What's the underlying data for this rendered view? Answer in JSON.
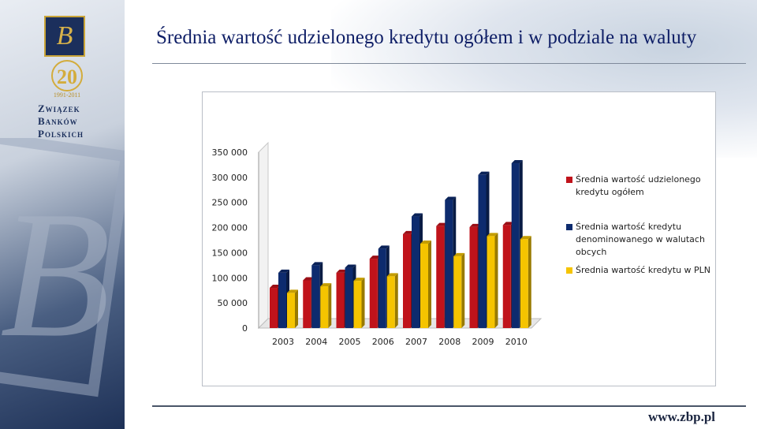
{
  "slide": {
    "title": "Średnia wartość udzielonego kredytu ogółem i w podziale na waluty",
    "footer_url": "www.zbp.pl"
  },
  "sidebar": {
    "logo_letter": "B",
    "anniversary_number": "20",
    "anniversary_years": "1991-2011",
    "org_line1": "Związek",
    "org_line2": "Banków",
    "org_line3": "Polskich"
  },
  "colors": {
    "series_total": "#c0131b",
    "series_foreign": "#0d2b6e",
    "series_pln": "#f5c400",
    "title": "#0e1e66"
  },
  "chart_data": {
    "type": "bar",
    "style": "3d-clustered",
    "categories": [
      "2003",
      "2004",
      "2005",
      "2006",
      "2007",
      "2008",
      "2009",
      "2010"
    ],
    "series": [
      {
        "name": "Średnia wartość udzielonego kredytu ogółem",
        "values": [
          80000,
          95000,
          110000,
          138000,
          187000,
          203000,
          201000,
          205000
        ]
      },
      {
        "name": "Średnia wartość kredytu denominowanego w walutach obcych",
        "values": [
          110000,
          125000,
          120000,
          158000,
          222000,
          255000,
          305000,
          328000
        ]
      },
      {
        "name": "Średnia wartość kredytu w PLN",
        "values": [
          70000,
          83000,
          94000,
          103000,
          168000,
          143000,
          183000,
          177000
        ]
      }
    ],
    "y_ticks": [
      "0",
      "50 000",
      "100 000",
      "150 000",
      "200 000",
      "250 000",
      "300 000",
      "350 000"
    ],
    "ylim": [
      0,
      350000
    ],
    "legend_position": "right",
    "grid": false
  }
}
